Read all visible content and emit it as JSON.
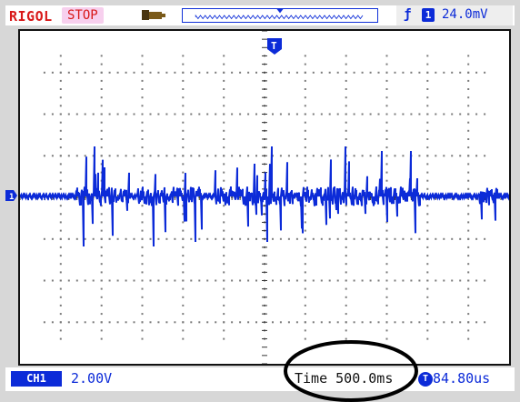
{
  "top_bar": {
    "brand": "RIGOL",
    "run_status": "STOP",
    "memory_icon": "memory-depth-icon",
    "waveform_overview_icon": "waveform-overview-icon"
  },
  "trigger": {
    "edge_icon": "rising-edge-icon",
    "source_label": "1",
    "level": "24.0mV"
  },
  "screen": {
    "trigger_marker_label": "T",
    "channel_marker_label": "1",
    "trace_color": "#0c2bd8",
    "grid_color": "#7a7a7a"
  },
  "bottom_bar": {
    "channel_badge": "CH1",
    "channel_scale": "2.00V",
    "timebase": "Time 500.0ms",
    "trigger_position_icon": "T",
    "trigger_position": "84.80us"
  },
  "annotation": {
    "shape": "ellipse",
    "color": "#000000"
  },
  "colors": {
    "brand": "#d81818",
    "status_bg": "#f7d0ee",
    "accent_blue": "#0c2bd8",
    "frame": "#d7d7d7"
  }
}
